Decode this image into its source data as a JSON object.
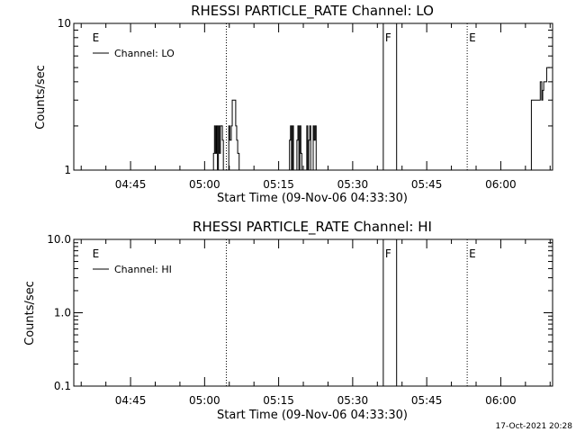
{
  "chart_data": [
    {
      "type": "line",
      "title": "RHESSI PARTICLE_RATE Channel: LO",
      "xlabel": "Start Time (09-Nov-06 04:33:30)",
      "ylabel": "Counts/sec",
      "y_scale": "log",
      "ylim": [
        1,
        10
      ],
      "y_ticks": [
        1,
        10
      ],
      "y_tick_labels": [
        "1",
        "10"
      ],
      "x_ticks": [
        "04:45",
        "05:00",
        "05:15",
        "05:30",
        "05:45",
        "06:00"
      ],
      "legend": {
        "position": "top-left",
        "label": "Channel: LO"
      },
      "markers": [
        {
          "label": "E",
          "time": "04:36.9",
          "style": "edge"
        },
        {
          "label": "",
          "time": "05:04.4",
          "style": "dotted"
        },
        {
          "label": "F",
          "time": "05:36.2",
          "style": "solid"
        },
        {
          "label": "",
          "time": "05:38.9",
          "style": "solid"
        },
        {
          "label": "E",
          "time": "05:53.2",
          "style": "dotted"
        },
        {
          "label": "",
          "time": "06:10.5",
          "style": "dotted"
        }
      ],
      "series": [
        {
          "x": [
            "05:01.7",
            "05:01.8",
            "05:02.0",
            "05:02.2",
            "05:02.4",
            "05:02.6",
            "05:02.8",
            "05:03.0",
            "05:03.2",
            "05:03.4",
            "05:03.6",
            "05:03.8",
            "05:04.2",
            "05:04.6",
            "05:04.9",
            "05:05.1",
            "05:05.4",
            "05:05.6",
            "05:06.1",
            "05:06.3",
            "05:06.5",
            "05:06.7",
            "05:07.0",
            "05:17.0",
            "05:17.2",
            "05:17.4",
            "05:17.6",
            "05:17.8",
            "05:18.0",
            "05:18.5",
            "05:18.7",
            "05:18.9",
            "05:19.1",
            "05:19.3",
            "05:19.5",
            "05:19.7",
            "05:20.5",
            "05:20.7",
            "05:20.9",
            "05:21.1",
            "05:21.3",
            "05:21.5",
            "05:21.8",
            "05:22.0",
            "05:22.2",
            "05:22.4",
            "05:22.6",
            "06:05.5",
            "06:06.2",
            "06:06.4",
            "06:07.8",
            "06:08.0",
            "06:08.3",
            "06:08.5",
            "06:08.7",
            "06:09.0",
            "06:09.3",
            "06:09.6",
            "06:10.0"
          ],
          "values": [
            1,
            1.3,
            2,
            1.3,
            2,
            1,
            2,
            1.3,
            2,
            2,
            1.6,
            1,
            1,
            1,
            2,
            1.6,
            2,
            3,
            3,
            2,
            1.6,
            1.3,
            1,
            1,
            1.6,
            2,
            1,
            2,
            1,
            1,
            1.6,
            2,
            1,
            2,
            1.3,
            1,
            1,
            2,
            1,
            1.6,
            2,
            1,
            1,
            2,
            1.6,
            2,
            1,
            1,
            3,
            3,
            3,
            4,
            3,
            3.5,
            4,
            4,
            5,
            5,
            5
          ]
        }
      ]
    },
    {
      "type": "line",
      "title": "RHESSI PARTICLE_RATE Channel: HI",
      "xlabel": "Start Time (09-Nov-06 04:33:30)",
      "ylabel": "Counts/sec",
      "y_scale": "log",
      "ylim": [
        0.1,
        10
      ],
      "y_ticks": [
        0.1,
        1,
        10
      ],
      "y_tick_labels": [
        "0.1",
        "1.0",
        "10.0"
      ],
      "x_ticks": [
        "04:45",
        "05:00",
        "05:15",
        "05:30",
        "05:45",
        "06:00"
      ],
      "legend": {
        "position": "top-left",
        "label": "Channel: HI"
      },
      "markers": [
        {
          "label": "E",
          "time": "04:36.9",
          "style": "edge"
        },
        {
          "label": "",
          "time": "05:04.4",
          "style": "dotted"
        },
        {
          "label": "F",
          "time": "05:36.2",
          "style": "solid"
        },
        {
          "label": "",
          "time": "05:38.9",
          "style": "solid"
        },
        {
          "label": "E",
          "time": "05:53.2",
          "style": "dotted"
        },
        {
          "label": "",
          "time": "06:10.5",
          "style": "dotted"
        }
      ],
      "series": [
        {
          "x": [],
          "values": []
        }
      ]
    }
  ],
  "footer": {
    "timestamp": "17-Oct-2021 20:28"
  }
}
